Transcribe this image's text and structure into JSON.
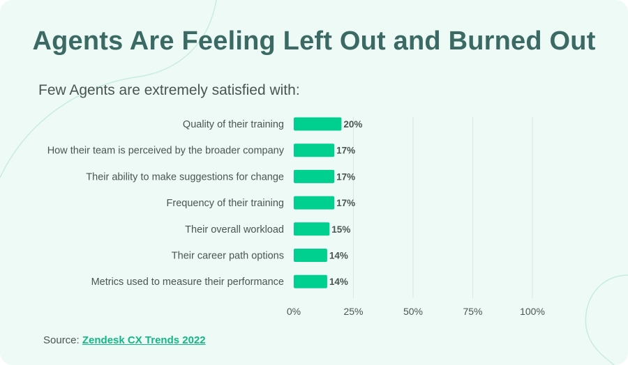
{
  "title": "Agents Are Feeling Left Out and Burned Out",
  "subtitle": "Few Agents are extremely satisfied with:",
  "source": {
    "prefix": "Source: ",
    "link_text": "Zendesk CX Trends 2022"
  },
  "colors": {
    "bar": "#00d08f",
    "grid": "#d8e8e2",
    "title": "#3b6a64",
    "text": "#4a5552",
    "link": "#12b886"
  },
  "chart_data": {
    "type": "bar",
    "orientation": "horizontal",
    "categories": [
      "Quality of their training",
      "How their team is perceived by the broader company",
      "Their ability to make suggestions for change",
      "Frequency of their training",
      "Their overall workload",
      "Their career path options",
      "Metrics used to measure their performance"
    ],
    "values": [
      20,
      17,
      17,
      17,
      15,
      14,
      14
    ],
    "data_labels": [
      "20%",
      "17%",
      "17%",
      "17%",
      "15%",
      "14%",
      "14%"
    ],
    "xticks": [
      0,
      25,
      50,
      75,
      100
    ],
    "xtick_labels": [
      "0%",
      "25%",
      "50%",
      "75%",
      "100%"
    ],
    "xlim": [
      0,
      100
    ],
    "grid": true,
    "legend": "none"
  }
}
